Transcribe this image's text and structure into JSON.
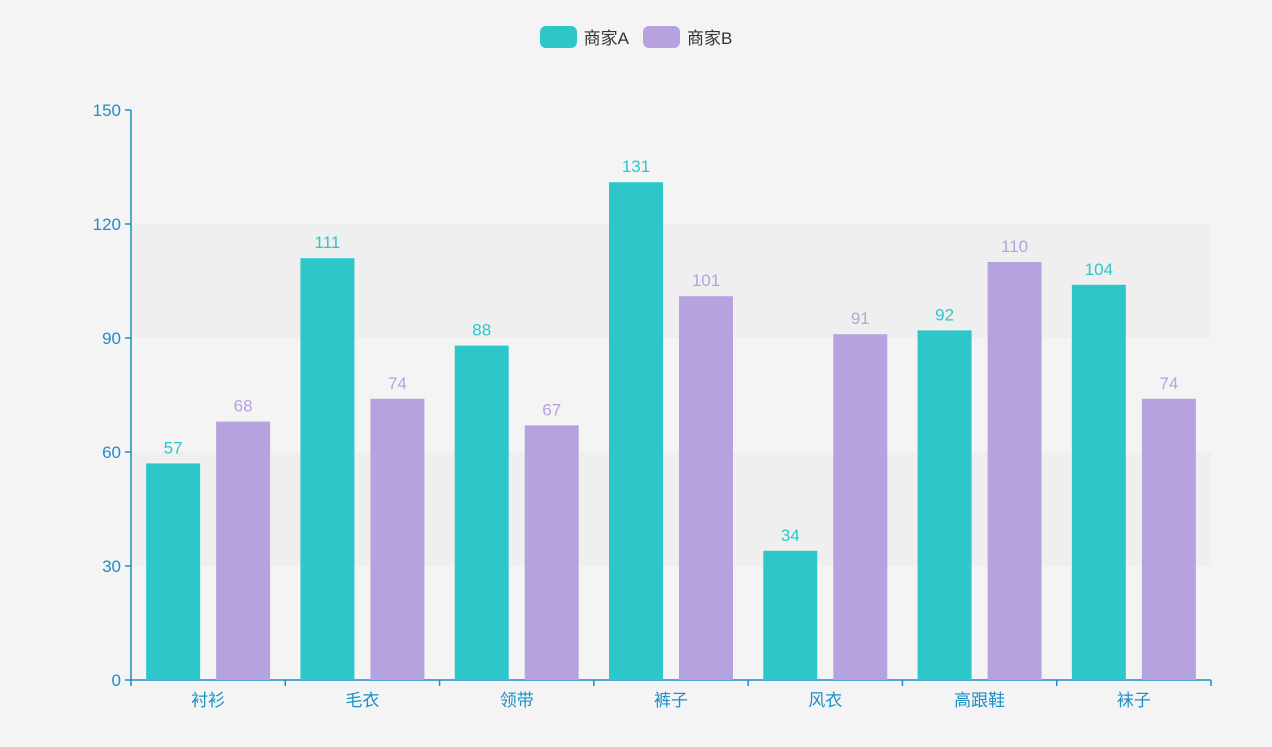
{
  "chart_data": {
    "type": "bar",
    "title": "",
    "xlabel": "",
    "ylabel": "",
    "categories": [
      "衬衫",
      "毛衣",
      "领带",
      "裤子",
      "风衣",
      "高跟鞋",
      "袜子"
    ],
    "series": [
      {
        "name": "商家A",
        "color": "#2ec7c9",
        "values": [
          57,
          111,
          88,
          131,
          34,
          92,
          104
        ]
      },
      {
        "name": "商家B",
        "color": "#b6a2de",
        "values": [
          68,
          74,
          67,
          101,
          91,
          110,
          74
        ]
      }
    ],
    "ylim": [
      0,
      150
    ],
    "yticks": [
      0,
      30,
      60,
      90,
      120,
      150
    ],
    "legend_position": "top-center",
    "axis_color": "#1b90c8",
    "split_area_colors": [
      "#f4f4f4",
      "#efefef"
    ]
  }
}
